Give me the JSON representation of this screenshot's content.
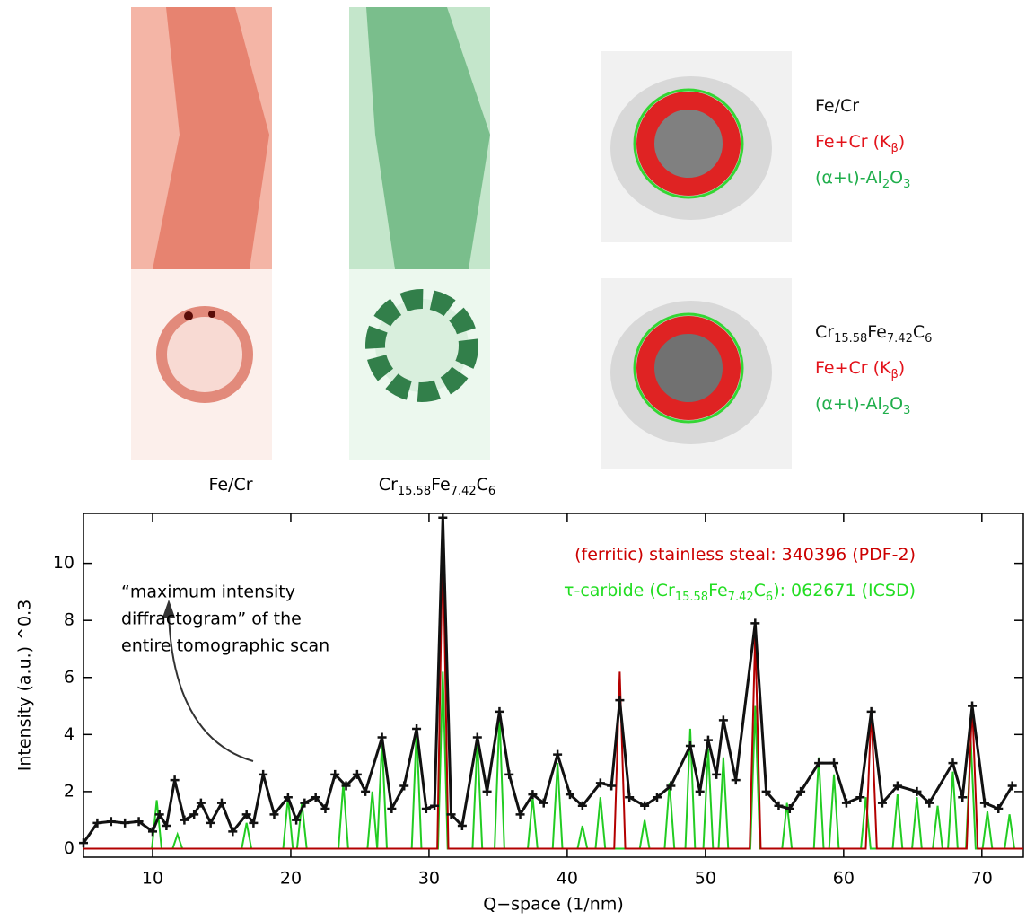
{
  "images": {
    "labels": [
      [
        {
          "text": "Fe/Cr"
        }
      ],
      [
        {
          "text": "Cr"
        },
        {
          "text": "15.58",
          "sub": true
        },
        {
          "text": "Fe"
        },
        {
          "text": "7.42",
          "sub": true
        },
        {
          "text": "C"
        },
        {
          "text": "6",
          "sub": true
        }
      ]
    ],
    "legend_top": [
      {
        "color": "#111111",
        "runs": [
          {
            "text": "Fe/Cr"
          }
        ]
      },
      {
        "color": "#e3131b",
        "runs": [
          {
            "text": "Fe+Cr (K"
          },
          {
            "text": "β",
            "sub": true
          },
          {
            "text": ")"
          }
        ]
      },
      {
        "color": "#1fae4b",
        "runs": [
          {
            "text": "(α+ι)-Al"
          },
          {
            "text": "2",
            "sub": true
          },
          {
            "text": "O"
          },
          {
            "text": "3",
            "sub": true
          }
        ]
      }
    ],
    "legend_bottom": [
      {
        "color": "#111111",
        "runs": [
          {
            "text": "Cr"
          },
          {
            "text": "15.58",
            "sub": true
          },
          {
            "text": "Fe"
          },
          {
            "text": "7.42",
            "sub": true
          },
          {
            "text": "C"
          },
          {
            "text": "6",
            "sub": true
          }
        ]
      },
      {
        "color": "#e3131b",
        "runs": [
          {
            "text": "Fe+Cr (K"
          },
          {
            "text": "β",
            "sub": true
          },
          {
            "text": ")"
          }
        ]
      },
      {
        "color": "#1fae4b",
        "runs": [
          {
            "text": "(α+ι)-Al"
          },
          {
            "text": "2",
            "sub": true
          },
          {
            "text": "O"
          },
          {
            "text": "3",
            "sub": true
          }
        ]
      }
    ]
  },
  "chart_data": {
    "type": "line",
    "x_label": "Q−space (1/nm)",
    "y_label": "Intensity (a.u.) ^0.3",
    "xlim": [
      5,
      73
    ],
    "ylim": [
      -0.3,
      11.75
    ],
    "xticks": [
      10,
      20,
      30,
      40,
      50,
      60,
      70
    ],
    "yticks": [
      0,
      2,
      4,
      6,
      8,
      10
    ],
    "annotation": [
      "“maximum intensity",
      "diffractogram” of the",
      "entire tomographic scan"
    ],
    "series": [
      {
        "color": "#22cc22",
        "name": [
          {
            "text": "τ-carbide (Cr"
          },
          {
            "text": "15.58",
            "sub": true
          },
          {
            "text": "Fe"
          },
          {
            "text": "7.42",
            "sub": true
          },
          {
            "text": "C"
          },
          {
            "text": "6",
            "sub": true
          },
          {
            "text": "): 062671 (ICSD)"
          }
        ],
        "x": [
          9.95,
          10.3,
          10.65,
          11.45,
          11.8,
          12.15,
          16.45,
          16.8,
          17.15,
          19.45,
          19.8,
          20.15,
          20.45,
          20.8,
          21.15,
          23.45,
          23.8,
          24.15,
          25.55,
          25.9,
          26.25,
          26.25,
          26.6,
          26.95,
          28.75,
          29.1,
          29.45,
          30.65,
          31.0,
          31.35,
          33.15,
          33.5,
          33.85,
          34.75,
          35.1,
          35.45,
          37.15,
          37.5,
          37.85,
          38.95,
          39.3,
          39.65,
          40.75,
          41.1,
          41.45,
          42.05,
          42.4,
          42.75,
          45.25,
          45.6,
          45.95,
          47.05,
          47.4,
          47.75,
          48.55,
          48.9,
          49.25,
          49.85,
          50.2,
          50.55,
          50.95,
          51.3,
          51.65,
          53.25,
          53.6,
          53.95,
          55.55,
          55.9,
          56.25,
          57.85,
          58.2,
          58.55,
          58.95,
          59.3,
          59.65,
          61.25,
          61.6,
          61.95,
          63.55,
          63.9,
          64.25,
          64.95,
          65.3,
          65.65,
          66.45,
          66.8,
          67.15,
          67.55,
          67.9,
          68.25,
          68.85,
          69.2,
          69.55,
          70.05,
          70.4,
          70.75,
          71.65,
          72.0,
          72.35
        ],
        "values": [
          0,
          1.7,
          0,
          0,
          0.5,
          0,
          0,
          0.9,
          0,
          0,
          1.8,
          0,
          0,
          1.6,
          0,
          0,
          2.3,
          0,
          0,
          2.0,
          0,
          0,
          3.8,
          0,
          0,
          4.2,
          0,
          0,
          6.2,
          0,
          0,
          3.8,
          0,
          0,
          4.7,
          0,
          0,
          1.8,
          0,
          0,
          3.0,
          0,
          0,
          0.8,
          0,
          0,
          1.8,
          0,
          0,
          1.0,
          0,
          0,
          2.3,
          0,
          0,
          4.2,
          0,
          0,
          3.5,
          0,
          0,
          3.2,
          0,
          0,
          5.0,
          0,
          0,
          1.6,
          0,
          0,
          3.2,
          0,
          0,
          2.6,
          0,
          0,
          1.8,
          0,
          0,
          1.9,
          0,
          0,
          1.8,
          0,
          0,
          1.5,
          0,
          0,
          2.7,
          0,
          0,
          3.8,
          0,
          0,
          1.3,
          0,
          0,
          1.2,
          0
        ]
      },
      {
        "color": "#b30000",
        "name": [
          {
            "text": "(ferritic) stainless steal:  340396 (PDF-2)"
          }
        ],
        "x": [
          5,
          30.6,
          31.0,
          31.4,
          43.4,
          43.8,
          44.2,
          53.2,
          53.6,
          54.0,
          61.6,
          62.0,
          62.4,
          68.9,
          69.3,
          69.7,
          73
        ],
        "values": [
          0,
          0,
          11.1,
          0,
          0,
          6.2,
          0,
          0,
          7.5,
          0,
          0,
          4.9,
          0,
          0,
          5.1,
          0,
          0
        ]
      },
      {
        "color": "#111111",
        "marker": "plus",
        "x": [
          5,
          6,
          7,
          8,
          9,
          10,
          10.5,
          11,
          11.6,
          12.3,
          13,
          13.5,
          14.2,
          15,
          15.8,
          16.8,
          17.3,
          18,
          18.8,
          19.8,
          20.4,
          21,
          21.8,
          22.5,
          23.2,
          24,
          24.8,
          25.4,
          26.6,
          27.3,
          28.2,
          29.1,
          29.8,
          30.4,
          31.0,
          31.6,
          32.4,
          33.5,
          34.2,
          35.1,
          35.8,
          36.6,
          37.5,
          38.3,
          39.3,
          40.2,
          41.1,
          42.4,
          43.2,
          43.8,
          44.5,
          45.6,
          46.5,
          47.5,
          48.9,
          49.6,
          50.2,
          50.8,
          51.3,
          52.2,
          53.6,
          54.4,
          55.3,
          56.1,
          56.9,
          58.2,
          59.3,
          60.2,
          61.2,
          62.0,
          62.8,
          63.9,
          65.3,
          66.2,
          67.9,
          68.6,
          69.3,
          70.2,
          71.2,
          72.2
        ],
        "values": [
          0.2,
          0.9,
          0.95,
          0.9,
          0.95,
          0.6,
          1.2,
          0.8,
          2.4,
          1.0,
          1.2,
          1.6,
          0.9,
          1.6,
          0.6,
          1.2,
          0.9,
          2.6,
          1.2,
          1.8,
          1.0,
          1.6,
          1.8,
          1.4,
          2.6,
          2.2,
          2.6,
          2.0,
          3.9,
          1.4,
          2.2,
          4.2,
          1.4,
          1.5,
          11.6,
          1.2,
          0.8,
          3.9,
          2.0,
          4.8,
          2.6,
          1.2,
          1.9,
          1.6,
          3.3,
          1.9,
          1.5,
          2.3,
          2.2,
          5.2,
          1.8,
          1.5,
          1.8,
          2.2,
          3.6,
          2.0,
          3.8,
          2.6,
          4.5,
          2.4,
          7.9,
          2.0,
          1.5,
          1.4,
          2.0,
          3.0,
          3.0,
          1.6,
          1.8,
          4.8,
          1.6,
          2.2,
          2.0,
          1.6,
          3.0,
          1.8,
          5.0,
          1.6,
          1.4,
          2.2
        ]
      }
    ]
  }
}
